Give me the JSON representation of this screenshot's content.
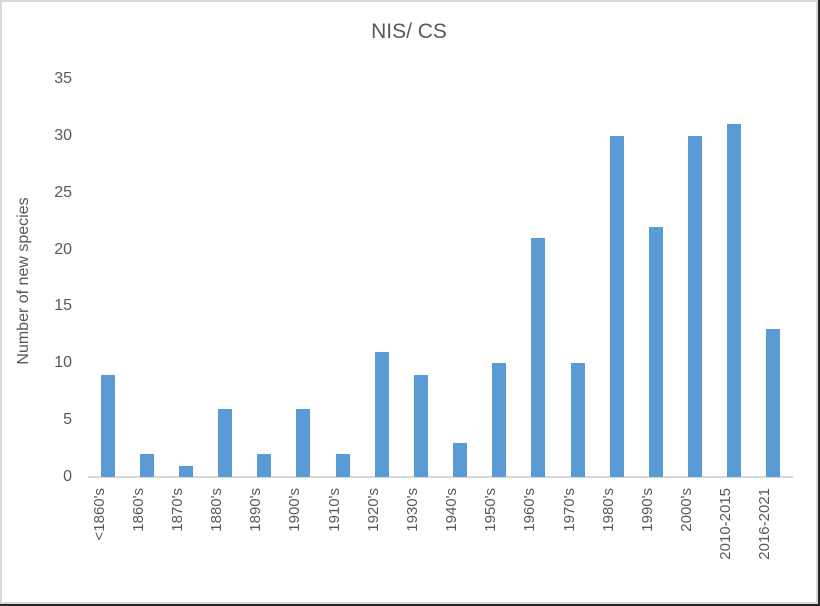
{
  "chart_data": {
    "type": "bar",
    "title": "NIS/ CS",
    "xlabel": "",
    "ylabel": "Number of new species",
    "categories": [
      "<1860's",
      "1860's",
      "1870's",
      "1880's",
      "1890's",
      "1900's",
      "1910's",
      "1920's",
      "1930's",
      "1940's",
      "1950's",
      "1960's",
      "1970's",
      "1980's",
      "1990's",
      "2000's",
      "2010-2015",
      "2016-2021"
    ],
    "values": [
      9,
      2,
      1,
      6,
      2,
      6,
      2,
      11,
      9,
      3,
      10,
      21,
      10,
      30,
      22,
      30,
      31,
      13
    ],
    "ylim": [
      0,
      35
    ],
    "yticks": [
      0,
      5,
      10,
      15,
      20,
      25,
      30,
      35
    ],
    "grid": false,
    "legend": "none",
    "colors": {
      "bar": "#5B9BD5",
      "axis_line": "#D9D9D9",
      "text": "#595959",
      "frame_border": "#D9D9D9",
      "page_edge": "#262626",
      "background": "#FFFFFF"
    }
  }
}
